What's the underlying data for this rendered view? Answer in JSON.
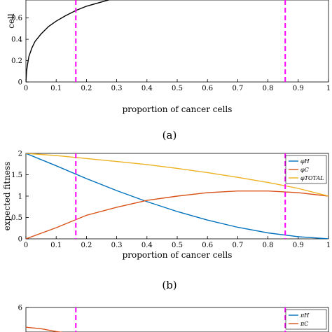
{
  "chart_data": [
    {
      "id": "a",
      "type": "line",
      "caption": "(a)",
      "xlabel": "proportion of cancer cells",
      "ylabel": "cell",
      "xlim": [
        0,
        1
      ],
      "ylim": [
        0,
        0.9
      ],
      "xticks": [
        "0",
        "0.1",
        "0.2",
        "0.3",
        "0.4",
        "0.5",
        "0.6",
        "0.7",
        "0.8",
        "0.9",
        "1"
      ],
      "yticks": [
        "0",
        "0.2",
        "0.4",
        "0.6",
        "0.8"
      ],
      "vlines": [
        0.165,
        0.857
      ],
      "vline_color": "#ff00ff",
      "series": [
        {
          "color": "#000000",
          "x": [
            0,
            0.002,
            0.005,
            0.01,
            0.02,
            0.03,
            0.05,
            0.075,
            0.1,
            0.13,
            0.165,
            0.2,
            0.25,
            0.3,
            0.35,
            0.4
          ],
          "y": [
            0,
            0.1,
            0.16,
            0.24,
            0.32,
            0.38,
            0.45,
            0.52,
            0.57,
            0.62,
            0.67,
            0.71,
            0.75,
            0.79,
            0.83,
            0.86
          ]
        }
      ]
    },
    {
      "id": "b",
      "type": "line",
      "caption": "(b)",
      "xlabel": "proportion of cancer cells",
      "ylabel": "expected fitness",
      "xlim": [
        0,
        1
      ],
      "ylim": [
        0,
        2
      ],
      "xticks": [
        "0",
        "0.1",
        "0.2",
        "0.3",
        "0.4",
        "0.5",
        "0.6",
        "0.7",
        "0.8",
        "0.9",
        "1"
      ],
      "yticks": [
        "0",
        "0.5",
        "1",
        "1.5",
        "2"
      ],
      "vlines": [
        0.165,
        0.857
      ],
      "vline_color": "#ff00ff",
      "legend": {
        "position": "top-right",
        "entries": [
          "φH",
          "φC",
          "φTOTAL"
        ]
      },
      "series": [
        {
          "name": "φH",
          "color": "#0072bd",
          "x": [
            0,
            0.1,
            0.2,
            0.3,
            0.4,
            0.5,
            0.6,
            0.7,
            0.8,
            0.9,
            1.0
          ],
          "y": [
            2.0,
            1.71,
            1.41,
            1.13,
            0.87,
            0.64,
            0.44,
            0.27,
            0.14,
            0.05,
            0.0
          ]
        },
        {
          "name": "φC",
          "color": "#d95319",
          "x": [
            0,
            0.1,
            0.2,
            0.3,
            0.4,
            0.5,
            0.6,
            0.7,
            0.8,
            0.9,
            1.0
          ],
          "y": [
            0.0,
            0.26,
            0.55,
            0.74,
            0.9,
            1.0,
            1.08,
            1.12,
            1.12,
            1.08,
            1.0
          ]
        },
        {
          "name": "φTOTAL",
          "color": "#edb120",
          "x": [
            0,
            0.1,
            0.2,
            0.3,
            0.4,
            0.5,
            0.6,
            0.7,
            0.8,
            0.9,
            1.0
          ],
          "y": [
            2.0,
            1.95,
            1.88,
            1.81,
            1.74,
            1.65,
            1.55,
            1.44,
            1.32,
            1.18,
            1.0
          ]
        }
      ]
    },
    {
      "id": "c",
      "type": "line",
      "xlim": [
        0,
        1
      ],
      "ylim": [
        0,
        6
      ],
      "yticks": [
        "6"
      ],
      "vlines": [
        0.165,
        0.857
      ],
      "vline_color": "#ff00ff",
      "legend": {
        "position": "top-right",
        "entries": [
          "πH",
          "πC"
        ]
      },
      "series": [
        {
          "name": "πH",
          "color": "#0072bd",
          "x": [],
          "y": []
        },
        {
          "name": "πC",
          "color": "#d95319",
          "x": [
            0,
            0.05,
            0.1,
            0.165
          ],
          "y": [
            4.6,
            4.5,
            4.3,
            4.1
          ]
        }
      ]
    }
  ]
}
